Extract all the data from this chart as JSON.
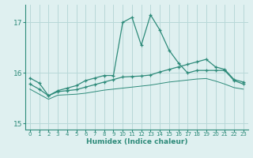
{
  "xlabel": "Humidex (Indice chaleur)",
  "x": [
    0,
    1,
    2,
    3,
    4,
    5,
    6,
    7,
    8,
    9,
    10,
    11,
    12,
    13,
    14,
    15,
    16,
    17,
    18,
    19,
    20,
    21,
    22,
    23
  ],
  "line1": [
    15.9,
    15.8,
    15.55,
    15.65,
    15.7,
    15.75,
    15.85,
    15.9,
    15.95,
    15.95,
    17.0,
    17.1,
    16.55,
    17.15,
    16.85,
    16.45,
    16.2,
    16.0,
    16.05,
    16.05,
    16.05,
    16.05,
    15.85,
    15.78
  ],
  "line2": [
    15.78,
    15.68,
    15.55,
    15.63,
    15.65,
    15.67,
    15.72,
    15.77,
    15.82,
    15.87,
    15.92,
    15.93,
    15.94,
    15.96,
    16.02,
    16.07,
    16.12,
    16.17,
    16.22,
    16.27,
    16.12,
    16.07,
    15.87,
    15.82
  ],
  "line3": [
    15.68,
    15.58,
    15.48,
    15.56,
    15.57,
    15.58,
    15.6,
    15.63,
    15.66,
    15.68,
    15.7,
    15.72,
    15.74,
    15.76,
    15.79,
    15.82,
    15.84,
    15.86,
    15.88,
    15.89,
    15.84,
    15.78,
    15.71,
    15.68
  ],
  "color": "#2e8b7a",
  "bg_color": "#dff0f0",
  "grid_color": "#b8d8d8",
  "yticks": [
    15,
    16,
    17
  ],
  "ylim": [
    14.88,
    17.35
  ],
  "xlim": [
    -0.5,
    23.5
  ]
}
